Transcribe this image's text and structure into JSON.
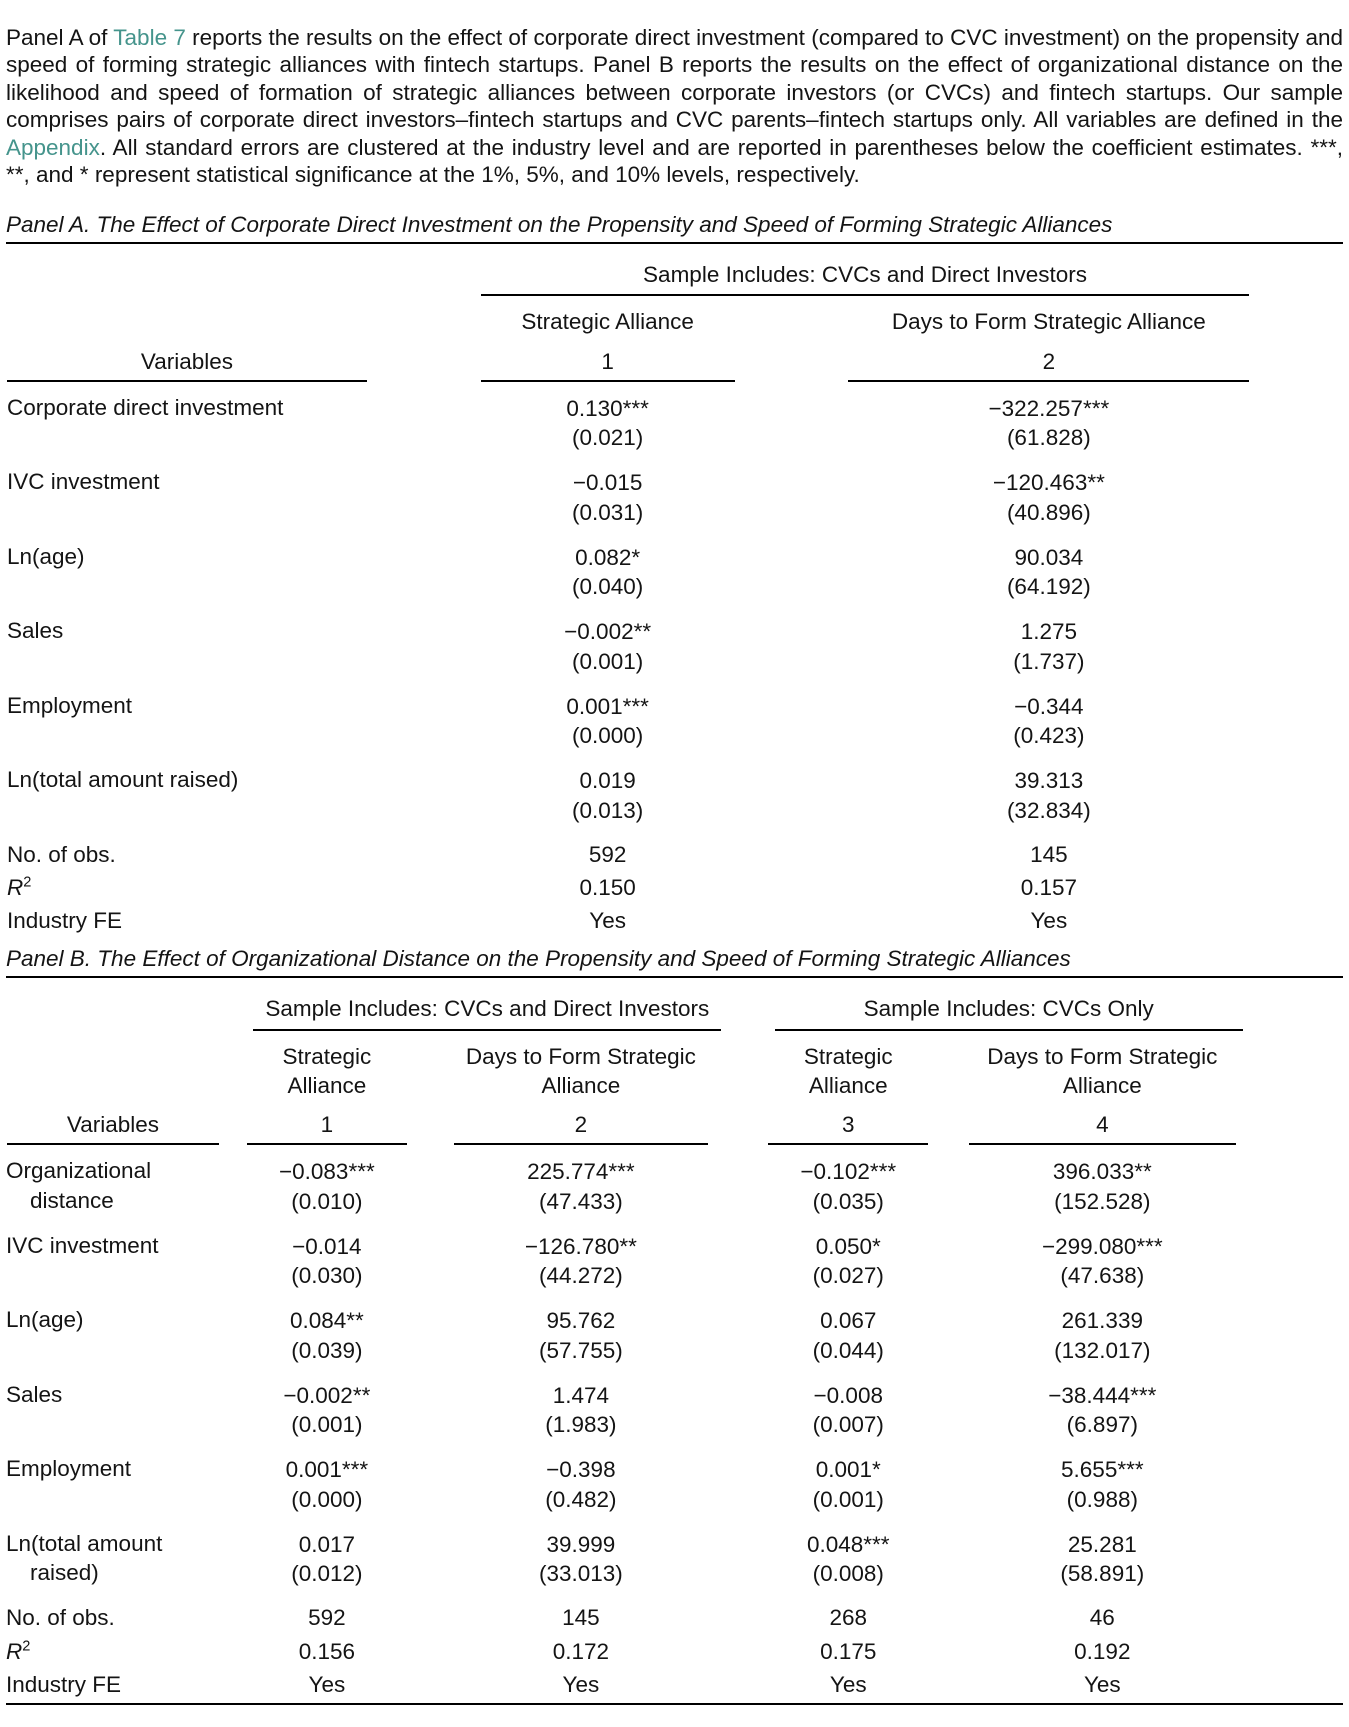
{
  "colors": {
    "link": "#45948c",
    "rule": "#000000",
    "text": "#141414"
  },
  "caption": {
    "segments": [
      {
        "text": "Panel A of "
      },
      {
        "text": "Table 7",
        "link": true,
        "name": "table-7-link"
      },
      {
        "text": " reports the results on the effect of corporate direct investment (compared to CVC investment) on the propensity and speed of forming strategic alliances with fintech startups. Panel B reports the results on the effect of organizational distance on the likelihood and speed of formation of strategic alliances between corporate investors (or CVCs) and fintech startups. Our sample comprises pairs of corporate direct investors–fintech startups and CVC parents–fintech startups only. All variables are defined in the "
      },
      {
        "text": "Appendix",
        "link": true,
        "name": "appendix-link"
      },
      {
        "text": ". All standard errors are clustered at the industry level and are reported in parentheses below the coefficient estimates. ***, **, and * represent statistical significance at the 1%, 5%, and 10% levels, respectively."
      }
    ]
  },
  "panelA": {
    "title": "Panel A. The Effect of Corporate Direct Investment on the Propensity and Speed of Forming Strategic Alliances",
    "groups": [
      {
        "label": "Sample Includes: CVCs and Direct Investors",
        "span": 2
      }
    ],
    "col_headers": [
      "Strategic Alliance",
      "Days to Form Strategic Alliance"
    ],
    "variables_label": "Variables",
    "col_numbers": [
      "1",
      "2"
    ],
    "rows": [
      {
        "label": "Corporate direct investment",
        "cells": [
          {
            "coef": "0.130***",
            "se": "(0.021)"
          },
          {
            "coef": "−322.257***",
            "se": "(61.828)"
          }
        ]
      },
      {
        "label": "IVC investment",
        "cells": [
          {
            "coef": "−0.015",
            "se": "(0.031)"
          },
          {
            "coef": "−120.463**",
            "se": "(40.896)"
          }
        ]
      },
      {
        "label": "Ln(age)",
        "cells": [
          {
            "coef": "0.082*",
            "se": "(0.040)"
          },
          {
            "coef": "90.034",
            "se": "(64.192)"
          }
        ]
      },
      {
        "label": "Sales",
        "cells": [
          {
            "coef": "−0.002**",
            "se": "(0.001)"
          },
          {
            "coef": "1.275",
            "se": "(1.737)"
          }
        ]
      },
      {
        "label": "Employment",
        "cells": [
          {
            "coef": "0.001***",
            "se": "(0.000)"
          },
          {
            "coef": "−0.344",
            "se": "(0.423)"
          }
        ]
      },
      {
        "label": "Ln(total amount raised)",
        "cells": [
          {
            "coef": "0.019",
            "se": "(0.013)"
          },
          {
            "coef": "39.313",
            "se": "(32.834)"
          }
        ]
      }
    ],
    "stats": [
      {
        "label": "No. of obs.",
        "values": [
          "592",
          "145"
        ]
      },
      {
        "label": "R",
        "sup": "2",
        "values": [
          "0.150",
          "0.157"
        ]
      },
      {
        "label": "Industry FE",
        "values": [
          "Yes",
          "Yes"
        ]
      }
    ]
  },
  "panelB": {
    "title": "Panel B. The Effect of Organizational Distance on the Propensity and Speed of Forming Strategic Alliances",
    "groups": [
      {
        "label": "Sample Includes: CVCs and Direct Investors",
        "span": 2
      },
      {
        "label": "Sample Includes: CVCs Only",
        "span": 2
      }
    ],
    "col_headers": [
      "Strategic\nAlliance",
      "Days to Form Strategic\nAlliance",
      "Strategic\nAlliance",
      "Days to Form Strategic\nAlliance"
    ],
    "variables_label": "Variables",
    "col_numbers": [
      "1",
      "2",
      "3",
      "4"
    ],
    "rows": [
      {
        "label": "Organizational distance",
        "cells": [
          {
            "coef": "−0.083***",
            "se": "(0.010)"
          },
          {
            "coef": "225.774***",
            "se": "(47.433)"
          },
          {
            "coef": "−0.102***",
            "se": "(0.035)"
          },
          {
            "coef": "396.033**",
            "se": "(152.528)"
          }
        ]
      },
      {
        "label": "IVC investment",
        "cells": [
          {
            "coef": "−0.014",
            "se": "(0.030)"
          },
          {
            "coef": "−126.780**",
            "se": "(44.272)"
          },
          {
            "coef": "0.050*",
            "se": "(0.027)"
          },
          {
            "coef": "−299.080***",
            "se": "(47.638)"
          }
        ]
      },
      {
        "label": "Ln(age)",
        "cells": [
          {
            "coef": "0.084**",
            "se": "(0.039)"
          },
          {
            "coef": "95.762",
            "se": "(57.755)"
          },
          {
            "coef": "0.067",
            "se": "(0.044)"
          },
          {
            "coef": "261.339",
            "se": "(132.017)"
          }
        ]
      },
      {
        "label": "Sales",
        "cells": [
          {
            "coef": "−0.002**",
            "se": "(0.001)"
          },
          {
            "coef": "1.474",
            "se": "(1.983)"
          },
          {
            "coef": "−0.008",
            "se": "(0.007)"
          },
          {
            "coef": "−38.444***",
            "se": "(6.897)"
          }
        ]
      },
      {
        "label": "Employment",
        "cells": [
          {
            "coef": "0.001***",
            "se": "(0.000)"
          },
          {
            "coef": "−0.398",
            "se": "(0.482)"
          },
          {
            "coef": "0.001*",
            "se": "(0.001)"
          },
          {
            "coef": "5.655***",
            "se": "(0.988)"
          }
        ]
      },
      {
        "label": "Ln(total amount raised)",
        "cells": [
          {
            "coef": "0.017",
            "se": "(0.012)"
          },
          {
            "coef": "39.999",
            "se": "(33.013)"
          },
          {
            "coef": "0.048***",
            "se": "(0.008)"
          },
          {
            "coef": "25.281",
            "se": "(58.891)"
          }
        ]
      }
    ],
    "stats": [
      {
        "label": "No. of obs.",
        "values": [
          "592",
          "145",
          "268",
          "46"
        ]
      },
      {
        "label": "R",
        "sup": "2",
        "values": [
          "0.156",
          "0.172",
          "0.175",
          "0.192"
        ]
      },
      {
        "label": "Industry FE",
        "values": [
          "Yes",
          "Yes",
          "Yes",
          "Yes"
        ]
      }
    ]
  }
}
